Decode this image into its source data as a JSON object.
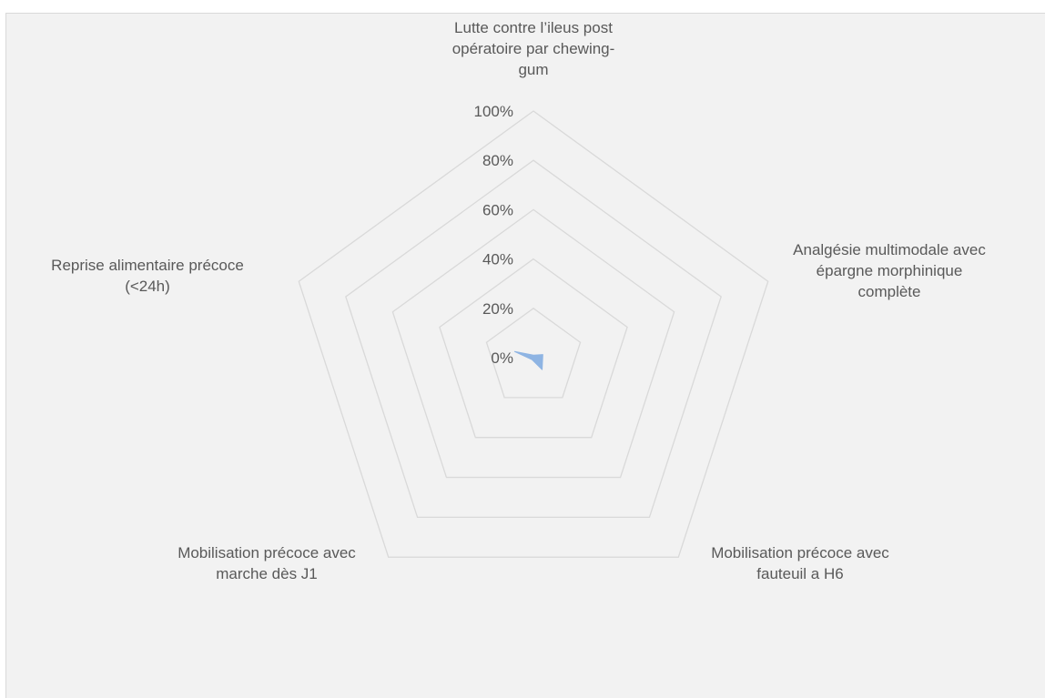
{
  "chart_data": {
    "type": "radar",
    "title": "",
    "categories": [
      [
        "Lutte contre l’ileus post",
        "opératoire par chewing-",
        "gum"
      ],
      [
        "Analgésie multimodale avec",
        "épargne morphinique",
        "complète"
      ],
      [
        "Mobilisation précoce avec",
        "fauteuil a H6"
      ],
      [
        "Mobilisation précoce avec",
        "marche dès J1"
      ],
      [
        "Reprise alimentaire précoce",
        "(<24h)"
      ]
    ],
    "series": [
      {
        "values": [
          0.01,
          0.04,
          0.06,
          0.01,
          0.08
        ],
        "color": "#8eb4e3"
      }
    ],
    "tick_labels": [
      "0%",
      "20%",
      "40%",
      "60%",
      "80%",
      "100%"
    ],
    "rlim": [
      0,
      1
    ],
    "grid": true,
    "grid_color": "#d9d9d9",
    "legend": "none"
  }
}
